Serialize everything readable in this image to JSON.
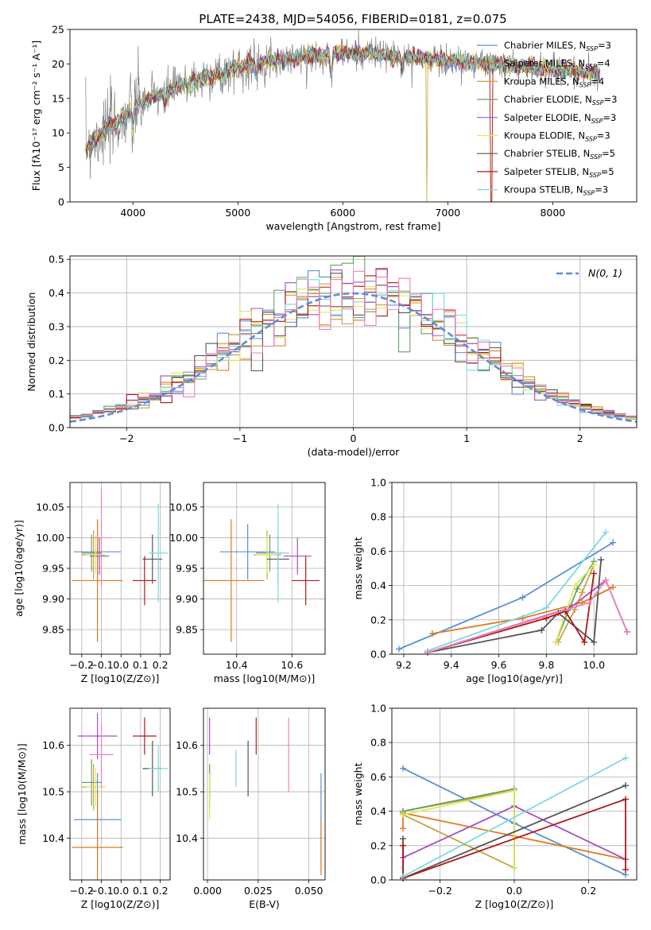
{
  "figure": {
    "title": "PLATE=2438, MJD=54056, FIBERID=0181, z=0.075"
  },
  "model_styles": [
    {
      "label": "Chabrier MILES, N_SSP=3",
      "base": "Chabrier MILES, N",
      "sub": "SSP",
      "tail": "=3",
      "color": "#5b8fd6"
    },
    {
      "label": "Salpeter MILES, N_SSP=4",
      "base": "Salpeter MILES, N",
      "sub": "SSP",
      "tail": "=4",
      "color": "#e07b1f"
    },
    {
      "label": "Kroupa MILES, N_SSP=4",
      "base": "Kroupa MILES, N",
      "sub": "SSP",
      "tail": "=4",
      "color": "#c9a33a"
    },
    {
      "label": "Chabrier ELODIE, N_SSP=3",
      "base": "Chabrier ELODIE, N",
      "sub": "SSP",
      "tail": "=3",
      "color": "#6a9e6a"
    },
    {
      "label": "Salpeter ELODIE, N_SSP=3",
      "base": "Salpeter ELODIE, N",
      "sub": "SSP",
      "tail": "=3",
      "color": "#a64fc0"
    },
    {
      "label": "Kroupa ELODIE, N_SSP=3",
      "base": "Kroupa ELODIE, N",
      "sub": "SSP",
      "tail": "=3",
      "color": "#dfe85a"
    },
    {
      "label": "Chabrier STELIB, N_SSP=5",
      "base": "Chabrier STELIB, N",
      "sub": "SSP",
      "tail": "=5",
      "color": "#555555"
    },
    {
      "label": "Salpeter STELIB, N_SSP=5",
      "base": "Salpeter STELIB, N",
      "sub": "SSP",
      "tail": "=5",
      "color": "#b01818"
    },
    {
      "label": "Kroupa STELIB, N_SSP=3",
      "base": "Kroupa STELIB, N",
      "sub": "SSP",
      "tail": "=3",
      "color": "#7fd8e0"
    }
  ],
  "chart_data": [
    {
      "id": "spectrum",
      "type": "line",
      "xlabel": "wavelength [Angstrom, rest frame]",
      "ylabel": "Flux [fλ10⁻¹⁷ erg cm⁻² s⁻¹ A⁻¹]",
      "xlim": [
        3400,
        8800
      ],
      "ylim": [
        0,
        25
      ],
      "xticks": [
        4000,
        5000,
        6000,
        7000,
        8000
      ],
      "yticks": [
        0,
        5,
        10,
        15,
        20,
        25
      ],
      "grid": false,
      "legend_position": "top-right",
      "continuum": {
        "x": [
          3550,
          3700,
          3900,
          4000,
          4100,
          4300,
          4600,
          5000,
          5300,
          5600,
          6000,
          6300,
          6600,
          7000,
          7400,
          7800,
          8200,
          8450
        ],
        "y": [
          8,
          10,
          12,
          13.5,
          14.5,
          16,
          17.5,
          19.5,
          20.5,
          21,
          21.5,
          21.5,
          21,
          20.5,
          20,
          19.5,
          19,
          18.5
        ]
      },
      "absorption_dips": [
        {
          "x": 4000,
          "y": 11
        },
        {
          "x": 4305,
          "y": 14
        },
        {
          "x": 4861,
          "y": 17.5
        },
        {
          "x": 5175,
          "y": 18.5
        },
        {
          "x": 5890,
          "y": 18.5
        },
        {
          "x": 6563,
          "y": 19.5
        }
      ],
      "model_drop_wavelengths": [
        6800,
        7415
      ]
    },
    {
      "id": "residuals",
      "type": "step",
      "xlabel": "(data-model)/error",
      "ylabel": "Normed distribution",
      "xlim": [
        -2.5,
        2.5
      ],
      "ylim": [
        0,
        0.51
      ],
      "xticks": [
        -2,
        -1,
        0,
        1,
        2
      ],
      "yticks": [
        0.0,
        0.1,
        0.2,
        0.3,
        0.4,
        0.5
      ],
      "grid": true,
      "legend_position": "top-right",
      "reference_curve": {
        "name": "N(0, 1)",
        "color": "#5b8fd6",
        "style": "dashed"
      },
      "bin_width": 0.1
    },
    {
      "id": "age_vs_Z",
      "type": "errorbar",
      "xlabel": "Z [log10(Z/Z⊙)]",
      "ylabel": "age  [log10(age/yr)]",
      "xlim": [
        -0.26,
        0.25
      ],
      "ylim": [
        9.81,
        10.09
      ],
      "xticks": [
        -0.2,
        -0.1,
        0.0,
        0.1,
        0.2
      ],
      "yticks": [
        9.85,
        9.9,
        9.95,
        10.0,
        10.05
      ],
      "grid": true,
      "points": [
        {
          "model": 0,
          "x": -0.12,
          "xerr": 0.12,
          "y": 9.977,
          "yerr": 0.045
        },
        {
          "model": 1,
          "x": -0.12,
          "xerr": 0.13,
          "y": 9.93,
          "yerr": 0.1
        },
        {
          "model": 2,
          "x": -0.14,
          "xerr": 0.06,
          "y": 9.972,
          "yerr": 0.04
        },
        {
          "model": 3,
          "x": -0.15,
          "xerr": 0.05,
          "y": 9.975,
          "yerr": 0.03
        },
        {
          "model": 4,
          "x": -0.11,
          "xerr": 0.05,
          "y": 9.97,
          "yerr": 0.03
        },
        {
          "model": 5,
          "x": -0.13,
          "xerr": 0.05,
          "y": 9.972,
          "yerr": 0.03
        },
        {
          "model": 6,
          "x": 0.16,
          "xerr": 0.05,
          "y": 9.965,
          "yerr": 0.04
        },
        {
          "model": 7,
          "x": 0.12,
          "xerr": 0.06,
          "y": 9.93,
          "yerr": 0.04
        },
        {
          "model": 8,
          "x": 0.19,
          "xerr": 0.05,
          "y": 9.975,
          "yerr": 0.08
        }
      ],
      "extra_points": [
        {
          "model": 9,
          "x": -0.1,
          "xerr": 0.05,
          "y": 10.0,
          "yerr": 0.08
        }
      ]
    },
    {
      "id": "age_vs_mass",
      "type": "errorbar",
      "xlabel": "mass [log10(M/M⊙)]",
      "ylabel": "",
      "xlim": [
        10.28,
        10.72
      ],
      "ylim": [
        9.81,
        10.09
      ],
      "xticks": [
        10.4,
        10.6
      ],
      "yticks": [
        9.85,
        9.9,
        9.95,
        10.0,
        10.05
      ],
      "grid": true,
      "points": [
        {
          "model": 0,
          "x": 10.44,
          "xerr": 0.1,
          "y": 9.977,
          "yerr": 0.045
        },
        {
          "model": 1,
          "x": 10.38,
          "xerr": 0.12,
          "y": 9.93,
          "yerr": 0.1
        },
        {
          "model": 2,
          "x": 10.51,
          "xerr": 0.05,
          "y": 9.972,
          "yerr": 0.04
        },
        {
          "model": 3,
          "x": 10.52,
          "xerr": 0.05,
          "y": 9.975,
          "yerr": 0.03
        },
        {
          "model": 4,
          "x": 10.62,
          "xerr": 0.05,
          "y": 9.97,
          "yerr": 0.03
        },
        {
          "model": 5,
          "x": 10.51,
          "xerr": 0.04,
          "y": 9.972,
          "yerr": 0.03
        },
        {
          "model": 6,
          "x": 10.55,
          "xerr": 0.04,
          "y": 9.965,
          "yerr": 0.04
        },
        {
          "model": 7,
          "x": 10.65,
          "xerr": 0.05,
          "y": 9.93,
          "yerr": 0.04
        },
        {
          "model": 8,
          "x": 10.55,
          "xerr": 0.04,
          "y": 9.975,
          "yerr": 0.08
        }
      ]
    },
    {
      "id": "weight_vs_age",
      "type": "line",
      "xlabel": "age  [log10(age/yr)]",
      "ylabel": "mass weight",
      "xlim": [
        9.15,
        10.18
      ],
      "ylim": [
        0,
        1.0
      ],
      "xticks": [
        9.2,
        9.4,
        9.6,
        9.8,
        10.0
      ],
      "yticks": [
        0.0,
        0.2,
        0.4,
        0.6,
        0.8,
        1.0
      ],
      "grid": true,
      "series": [
        {
          "model": 0,
          "x": [
            9.18,
            9.7,
            10.08
          ],
          "y": [
            0.03,
            0.33,
            0.65
          ]
        },
        {
          "model": 1,
          "x": [
            9.32,
            9.7,
            9.95,
            10.08
          ],
          "y": [
            0.12,
            0.21,
            0.3,
            0.39
          ]
        },
        {
          "model": 2,
          "x": [
            9.85,
            9.92,
            9.95,
            10.0
          ],
          "y": [
            0.07,
            0.26,
            0.36,
            0.52
          ]
        },
        {
          "model": 3,
          "x": [
            9.84,
            9.93,
            10.0
          ],
          "y": [
            0.07,
            0.38,
            0.54
          ]
        },
        {
          "model": 4,
          "x": [
            9.3,
            9.9,
            10.05,
            10.14
          ],
          "y": [
            0.01,
            0.27,
            0.43,
            0.13
          ]
        },
        {
          "model": 5,
          "x": [
            9.84,
            9.92,
            10.0
          ],
          "y": [
            0.07,
            0.4,
            0.52
          ]
        },
        {
          "model": 6,
          "x": [
            9.3,
            9.78,
            9.85,
            10.0,
            10.03
          ],
          "y": [
            0.01,
            0.14,
            0.24,
            0.07,
            0.55
          ]
        },
        {
          "model": 7,
          "x": [
            9.3,
            9.8,
            9.88,
            9.96,
            10.0
          ],
          "y": [
            0.01,
            0.21,
            0.25,
            0.07,
            0.47
          ]
        },
        {
          "model": 8,
          "x": [
            9.3,
            9.8,
            10.05
          ],
          "y": [
            0.02,
            0.27,
            0.71
          ]
        },
        {
          "model": 9,
          "x": [
            9.3,
            9.98,
            10.05,
            10.14
          ],
          "y": [
            0.01,
            0.3,
            0.43,
            0.13
          ]
        }
      ]
    },
    {
      "id": "mass_vs_Z",
      "type": "errorbar",
      "xlabel": "Z [log10(Z/Z⊙)]",
      "ylabel": "mass [log10(M/M⊙)]",
      "xlim": [
        -0.26,
        0.25
      ],
      "ylim": [
        10.31,
        10.68
      ],
      "xticks": [
        -0.2,
        -0.1,
        0.0,
        0.1,
        0.2
      ],
      "yticks": [
        10.4,
        10.5,
        10.6
      ],
      "grid": true,
      "points": [
        {
          "model": 0,
          "x": -0.12,
          "xerr": 0.12,
          "y": 10.44,
          "yerr": 0.1
        },
        {
          "model": 1,
          "x": -0.12,
          "xerr": 0.13,
          "y": 10.38,
          "yerr": 0.12
        },
        {
          "model": 2,
          "x": -0.14,
          "xerr": 0.06,
          "y": 10.51,
          "yerr": 0.05
        },
        {
          "model": 3,
          "x": -0.15,
          "xerr": 0.05,
          "y": 10.52,
          "yerr": 0.05
        },
        {
          "model": 4,
          "x": -0.12,
          "xerr": 0.1,
          "y": 10.62,
          "yerr": 0.05
        },
        {
          "model": 5,
          "x": -0.13,
          "xerr": 0.05,
          "y": 10.51,
          "yerr": 0.04
        },
        {
          "model": 6,
          "x": 0.16,
          "xerr": 0.05,
          "y": 10.55,
          "yerr": 0.06
        },
        {
          "model": 7,
          "x": 0.12,
          "xerr": 0.06,
          "y": 10.62,
          "yerr": 0.04
        },
        {
          "model": 8,
          "x": 0.19,
          "xerr": 0.05,
          "y": 10.55,
          "yerr": 0.05
        }
      ],
      "extra_points": [
        {
          "model": 9,
          "x": -0.1,
          "xerr": 0.06,
          "y": 10.58,
          "yerr": 0.07
        }
      ]
    },
    {
      "id": "mass_vs_EBV",
      "type": "errorbar",
      "xlabel": "E(B-V)",
      "ylabel": "",
      "xlim": [
        -0.002,
        0.058
      ],
      "ylim": [
        10.31,
        10.68
      ],
      "xticks": [
        0.0,
        0.025,
        0.05
      ],
      "yticks": [
        10.4,
        10.5,
        10.6
      ],
      "grid": true,
      "points": [
        {
          "model": 0,
          "x": 0.056,
          "y": 10.44,
          "yerr": 0.1
        },
        {
          "model": 1,
          "x": 0.056,
          "y": 10.38,
          "yerr": 0.06
        },
        {
          "model": 2,
          "x": 0.001,
          "y": 10.51,
          "yerr": 0.05
        },
        {
          "model": 3,
          "x": 0.001,
          "y": 10.52,
          "yerr": 0.04
        },
        {
          "model": 4,
          "x": 0.001,
          "y": 10.62,
          "yerr": 0.04
        },
        {
          "model": 5,
          "x": 0.001,
          "y": 10.49,
          "yerr": 0.05
        },
        {
          "model": 6,
          "x": 0.02,
          "y": 10.55,
          "yerr": 0.06
        },
        {
          "model": 7,
          "x": 0.024,
          "y": 10.62,
          "yerr": 0.04
        },
        {
          "model": 8,
          "x": 0.014,
          "y": 10.55,
          "yerr": 0.04
        }
      ],
      "extra_points": [
        {
          "model": 9,
          "x": 0.04,
          "y": 10.58,
          "yerr": 0.08
        }
      ]
    },
    {
      "id": "weight_vs_Z",
      "type": "line",
      "xlabel": "Z [log10(Z/Z⊙)]",
      "ylabel": "mass weight",
      "xlim": [
        -0.33,
        0.33
      ],
      "ylim": [
        0,
        1.0
      ],
      "xticks": [
        -0.2,
        0.0,
        0.2
      ],
      "yticks": [
        0.0,
        0.2,
        0.4,
        0.6,
        0.8,
        1.0
      ],
      "grid": true,
      "series": [
        {
          "model": 0,
          "x": [
            -0.3,
            0.0,
            0.3
          ],
          "y": [
            0.65,
            0.33,
            0.03
          ]
        },
        {
          "model": 1,
          "x": [
            -0.3,
            -0.3,
            0.3
          ],
          "y": [
            0.3,
            0.39,
            0.12
          ]
        },
        {
          "model": 2,
          "x": [
            -0.3,
            0.0,
            0.0,
            -0.3
          ],
          "y": [
            0.4,
            0.52,
            0.07,
            0.38
          ]
        },
        {
          "model": 3,
          "x": [
            -0.3,
            0.0,
            0.0
          ],
          "y": [
            0.4,
            0.53,
            0.07
          ]
        },
        {
          "model": 4,
          "x": [
            -0.3,
            0.0,
            0.3
          ],
          "y": [
            0.13,
            0.43,
            0.12
          ]
        },
        {
          "model": 5,
          "x": [
            -0.3,
            0.0,
            0.0
          ],
          "y": [
            0.38,
            0.52,
            0.07
          ]
        },
        {
          "model": 6,
          "x": [
            -0.3,
            -0.3,
            0.3
          ],
          "y": [
            0.24,
            0.01,
            0.55
          ]
        },
        {
          "model": 7,
          "x": [
            -0.3,
            -0.3,
            0.3,
            0.3
          ],
          "y": [
            0.2,
            0.01,
            0.47,
            0.06
          ]
        },
        {
          "model": 8,
          "x": [
            -0.3,
            0.3
          ],
          "y": [
            0.02,
            0.71
          ]
        }
      ]
    }
  ]
}
